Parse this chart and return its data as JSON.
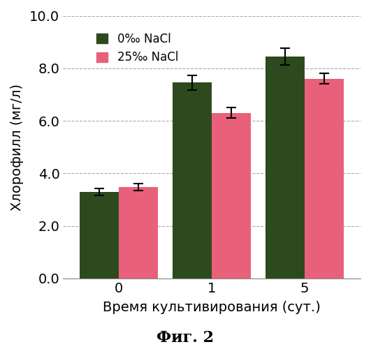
{
  "title": "Фиг. 2",
  "xlabel": "Время культивирования (сут.)",
  "ylabel": "Хлорофилл (мг/л)",
  "x_labels": [
    "0",
    "1",
    "5"
  ],
  "group1_values": [
    3.3,
    7.45,
    8.45
  ],
  "group2_values": [
    3.48,
    6.3,
    7.6
  ],
  "group1_errors": [
    0.13,
    0.28,
    0.32
  ],
  "group2_errors": [
    0.13,
    0.2,
    0.2
  ],
  "group1_color": "#2d4a1e",
  "group2_color": "#e8607a",
  "legend_label1": "0‰⁠ NaCl",
  "legend_label2": "25‰⁠ NaCl",
  "ylim": [
    0.0,
    10.0
  ],
  "yticks": [
    0.0,
    2.0,
    4.0,
    6.0,
    8.0,
    10.0
  ],
  "bar_width": 0.42,
  "background_color": "#ffffff",
  "grid_color": "#aaaaaa",
  "figsize": [
    5.31,
    5.0
  ],
  "dpi": 100
}
